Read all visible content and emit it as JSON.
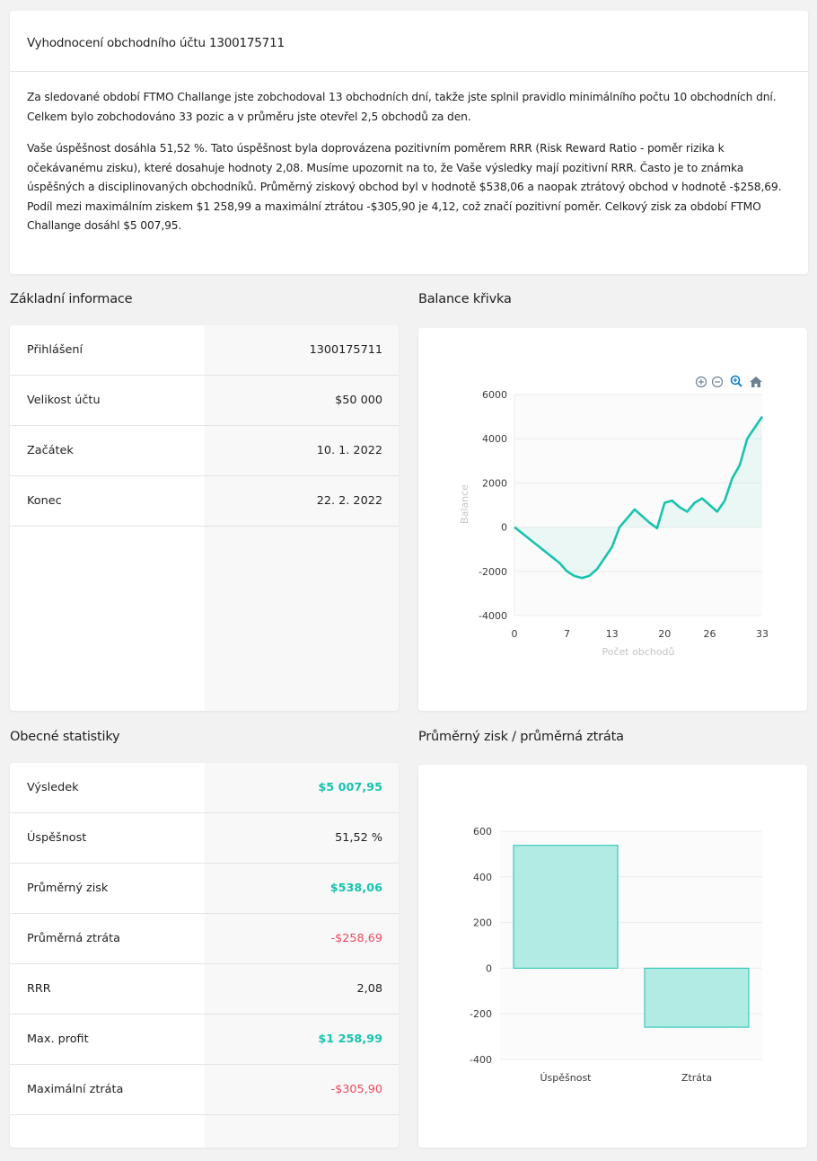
{
  "summary": {
    "title": "Vyhodnocení obchodního účtu 1300175711",
    "paragraph1": "Za sledované období FTMO Challange jste zobchodoval 13 obchodních dní, takže jste splnil pravidlo minimálního počtu 10 obchodních dní. Celkem bylo zobchodováno 33 pozic a v průměru jste otevřel 2,5 obchodů za den.",
    "paragraph2": "Vaše úspěšnost dosáhla 51,52  %. Tato úspěšnost byla doprovázena pozitivním poměrem RRR (Risk Reward Ratio - poměr rizika k očekávanému zisku), které dosahuje hodnoty 2,08. Musíme upozornit na to, že Vaše výsledky mají pozitivní RRR. Často je to známka úspěšných a disciplinovaných obchodníků. Průměrný ziskový obchod byl v hodnotě $538,06 a naopak ztrátový obchod v hodnotě -$258,69. Podíl mezi maximálním ziskem $1 258,99 a maximální ztrátou -$305,90 je 4,12, což značí pozitivní poměr. Celkový zisk za období FTMO Challange dosáhl $5 007,95."
  },
  "basic_info": {
    "title": "Základní informace",
    "rows": [
      {
        "label": "Přihlášení",
        "value": "1300175711"
      },
      {
        "label": "Velikost účtu",
        "value": "$50 000"
      },
      {
        "label": "Začátek",
        "value": "10. 1. 2022"
      },
      {
        "label": "Konec",
        "value": "22. 2. 2022"
      }
    ]
  },
  "general_stats": {
    "title": "Obecné statistiky",
    "rows": [
      {
        "label": "Výsledek",
        "value": "$5 007,95",
        "tone": "positive"
      },
      {
        "label": "Úspěšnost",
        "value": "51,52  %",
        "tone": "neutral"
      },
      {
        "label": "Průměrný zisk",
        "value": "$538,06",
        "tone": "positive"
      },
      {
        "label": "Průměrná ztráta",
        "value": "-$258,69",
        "tone": "negative"
      },
      {
        "label": "RRR",
        "value": "2,08",
        "tone": "neutral"
      },
      {
        "label": "Max. profit",
        "value": "$1 258,99",
        "tone": "positive"
      },
      {
        "label": "Maximální ztráta",
        "value": "-$305,90",
        "tone": "negative"
      }
    ]
  },
  "balance_chart": {
    "title": "Balance křivka",
    "toolbar": [
      "zoom-in-icon",
      "zoom-out-icon",
      "zoom-select-icon",
      "reset-home-icon"
    ]
  },
  "avg_chart": {
    "title": "Průměrný zisk / průměrná ztráta"
  },
  "colors": {
    "accent": "#19c3ad",
    "negative": "#ec4a5e",
    "bar_fill": "#b2ebe4"
  },
  "chart_data": [
    {
      "type": "area",
      "xlabel": "Počet obchodů",
      "ylabel": "Balance",
      "xlim": [
        0,
        33
      ],
      "ylim": [
        -4000,
        6000
      ],
      "x_ticks": [
        0,
        7,
        13,
        20,
        26,
        33
      ],
      "y_ticks": [
        6000,
        4000,
        2000,
        0,
        -2000,
        -4000
      ],
      "grid": true,
      "x": [
        0,
        1,
        2,
        3,
        4,
        5,
        6,
        7,
        8,
        9,
        10,
        11,
        12,
        13,
        14,
        15,
        16,
        17,
        18,
        19,
        20,
        21,
        22,
        23,
        24,
        25,
        26,
        27,
        28,
        29,
        30,
        31,
        32,
        33
      ],
      "values": [
        0,
        -270,
        -540,
        -810,
        -1080,
        -1350,
        -1620,
        -2000,
        -2210,
        -2300,
        -2200,
        -1900,
        -1400,
        -900,
        0,
        400,
        800,
        500,
        200,
        -50,
        1100,
        1200,
        900,
        700,
        1100,
        1300,
        1000,
        700,
        1200,
        2200,
        2800,
        4000,
        4500,
        5000
      ]
    },
    {
      "type": "bar",
      "categories": [
        "Úspěšnost",
        "Ztráta"
      ],
      "values": [
        538.06,
        -258.69
      ],
      "ylim": [
        -400,
        600
      ],
      "y_ticks": [
        600,
        400,
        200,
        0,
        -200,
        -400
      ],
      "grid": true
    }
  ]
}
